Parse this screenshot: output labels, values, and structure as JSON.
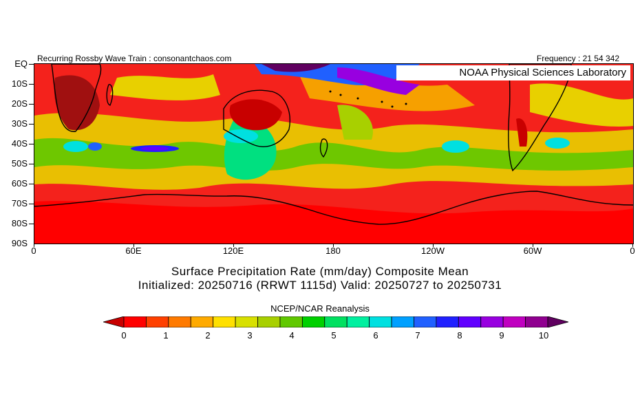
{
  "header": {
    "left": "Recurring Rossby Wave Train : consonantchaos.com",
    "right": "Frequency : 21 54 342",
    "lab": "NOAA Physical Sciences Laboratory"
  },
  "axes": {
    "lat_labels": [
      "EQ",
      "10S",
      "20S",
      "30S",
      "40S",
      "50S",
      "60S",
      "70S",
      "80S",
      "90S"
    ],
    "lon_labels": [
      "0",
      "60E",
      "120E",
      "180",
      "120W",
      "60W",
      "0"
    ]
  },
  "title": {
    "line1": "Surface Precipitation Rate (mm/day) Composite Mean",
    "line2": "Initialized: 20250716 (RRWT 1115d) Valid: 20250727 to 20250731"
  },
  "source": "NCEP/NCAR Reanalysis",
  "colorbar": {
    "labels": [
      "0",
      "1",
      "2",
      "3",
      "4",
      "5",
      "6",
      "7",
      "8",
      "9",
      "10"
    ],
    "colors": [
      "#c80000",
      "#ff0000",
      "#ff4000",
      "#ff7a00",
      "#ffaa00",
      "#ffe000",
      "#d8e000",
      "#a8d000",
      "#60c800",
      "#00d000",
      "#00e060",
      "#00f0a0",
      "#00e0e0",
      "#00a0ff",
      "#2060ff",
      "#2020ff",
      "#6000ff",
      "#9800e0",
      "#c000c0",
      "#900090",
      "#600060"
    ]
  },
  "map": {
    "background_color": "#f4221c"
  }
}
